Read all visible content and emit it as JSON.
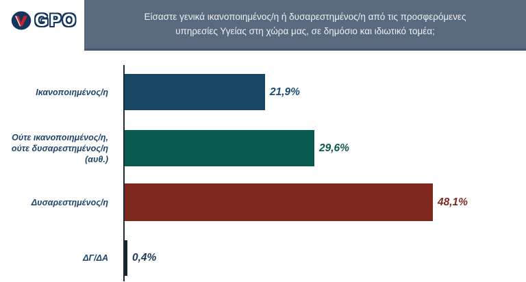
{
  "header": {
    "logo_text": "GPO",
    "logo_colors": {
      "navy": "#14355c",
      "red": "#c8242b"
    },
    "background": "#5a6a7e",
    "title_lines": [
      "Είσαστε γενικά ικανοποιημένος/η ή δυσαρεστημένος/η από τις προσφερόμενες",
      "υπηρεσίες Υγείας στη χώρα μας, σε δημόσιο και ιδιωτικό τομέα;"
    ]
  },
  "chart_data": {
    "type": "bar",
    "orientation": "horizontal",
    "title": "Είσαστε γενικά ικανοποιημένος/η ή δυσαρεστημένος/η από τις προσφερόμενες υπηρεσίες Υγείας στη χώρα μας, σε δημόσιο και ιδιωτικό τομέα;",
    "categories": [
      "Ικανοποιημένος/η",
      "Ούτε ικανοποιημένος/η, ούτε δυσαρεστημένος/η (αυθ.)",
      "Δυσαρεστημένος/η",
      "ΔΓ/ΔΑ"
    ],
    "category_label_lines": [
      [
        "Ικανοποιημένος/η"
      ],
      [
        "Ούτε ικανοποιημένος/η,",
        "ούτε δυσαρεστημένος/η",
        "(αυθ.)"
      ],
      [
        "Δυσαρεστημένος/η"
      ],
      [
        "ΔΓ/ΔΑ"
      ]
    ],
    "values": [
      21.9,
      29.6,
      48.1,
      0.4
    ],
    "value_labels": [
      "21,9%",
      "29,6%",
      "48,1%",
      "0,4%"
    ],
    "bar_colors": [
      "#174663",
      "#075a4e",
      "#7f291e",
      "#16222e"
    ],
    "value_label_colors": [
      "#1c4d72",
      "#0b5a4e",
      "#7f291e",
      "#1f3a57"
    ],
    "xlim": [
      0,
      50
    ],
    "grid": false,
    "legend": "none",
    "decimal_separator": ","
  }
}
